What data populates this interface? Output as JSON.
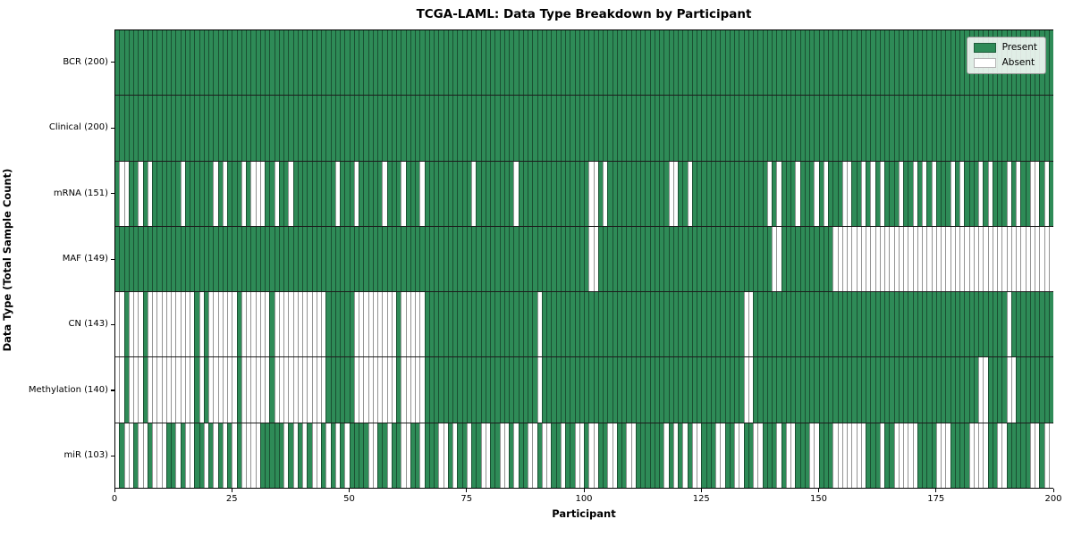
{
  "chart_data": {
    "type": "heatmap",
    "title": "TCGA-LAML: Data Type Breakdown by Participant",
    "xlabel": "Participant",
    "ylabel": "Data Type (Total Sample Count)",
    "x_ticks": [
      0,
      25,
      50,
      75,
      100,
      125,
      150,
      175,
      200
    ],
    "x_range": [
      0,
      200
    ],
    "n_participants": 200,
    "grid": false,
    "legend_position": "upper right",
    "colors": {
      "present": "#2e8b57",
      "absent": "#ffffff",
      "cell_edge": "rgba(0,0,0,0.42)",
      "frame": "#000000"
    },
    "legend": [
      {
        "label": "Present",
        "state": "present"
      },
      {
        "label": "Absent",
        "state": "absent"
      }
    ],
    "rows": [
      {
        "id": "bcr",
        "label": "BCR (200)",
        "present_count": 200,
        "absent": []
      },
      {
        "id": "clinical",
        "label": "Clinical (200)",
        "present_count": 200,
        "absent": []
      },
      {
        "id": "mrna",
        "label": "mRNA (151)",
        "present_count": 151,
        "absent": [
          1,
          2,
          5,
          7,
          14,
          21,
          23,
          27,
          29,
          30,
          31,
          34,
          37,
          47,
          51,
          57,
          61,
          65,
          76,
          85,
          101,
          102,
          104,
          118,
          119,
          122,
          139,
          141,
          145,
          149,
          151,
          155,
          156,
          159,
          161,
          163,
          167,
          170,
          172,
          174,
          178,
          180,
          184,
          186,
          190,
          192,
          195,
          196,
          198
        ]
      },
      {
        "id": "maf",
        "label": "MAF (149)",
        "present_count": 149,
        "absent": [
          101,
          102,
          140,
          141,
          153,
          154,
          155,
          156,
          157,
          158,
          159,
          160,
          161,
          162,
          163,
          164,
          165,
          166,
          167,
          168,
          169,
          170,
          171,
          172,
          173,
          174,
          175,
          176,
          177,
          178,
          179,
          180,
          181,
          182,
          183,
          184,
          185,
          186,
          187,
          188,
          189,
          190,
          191,
          192,
          193,
          194,
          195,
          196,
          197,
          198,
          199
        ]
      },
      {
        "id": "cn",
        "label": "CN (143)",
        "present_count": 143,
        "absent": [
          0,
          1,
          3,
          4,
          5,
          7,
          8,
          9,
          10,
          11,
          12,
          13,
          14,
          15,
          16,
          18,
          20,
          21,
          22,
          23,
          24,
          25,
          27,
          28,
          29,
          30,
          31,
          32,
          34,
          35,
          36,
          37,
          38,
          39,
          40,
          41,
          42,
          43,
          44,
          51,
          52,
          53,
          54,
          55,
          56,
          57,
          58,
          59,
          61,
          62,
          63,
          64,
          65,
          90,
          134,
          135,
          190
        ]
      },
      {
        "id": "methylation",
        "label": "Methylation (140)",
        "present_count": 140,
        "absent": [
          0,
          1,
          3,
          4,
          5,
          7,
          8,
          9,
          10,
          11,
          12,
          13,
          14,
          15,
          16,
          18,
          20,
          21,
          22,
          23,
          24,
          25,
          27,
          28,
          29,
          30,
          31,
          32,
          34,
          35,
          36,
          37,
          38,
          39,
          40,
          41,
          42,
          43,
          44,
          51,
          52,
          53,
          54,
          55,
          56,
          57,
          58,
          59,
          61,
          62,
          63,
          64,
          65,
          90,
          134,
          135,
          184,
          185,
          190,
          191
        ]
      },
      {
        "id": "mir",
        "label": "miR (103)",
        "present_count": 103,
        "absent": [
          0,
          2,
          3,
          5,
          6,
          8,
          9,
          10,
          13,
          15,
          16,
          19,
          21,
          23,
          25,
          27,
          28,
          29,
          30,
          36,
          38,
          40,
          42,
          43,
          45,
          47,
          49,
          54,
          55,
          58,
          61,
          62,
          65,
          69,
          70,
          72,
          75,
          78,
          79,
          82,
          83,
          85,
          88,
          89,
          91,
          92,
          95,
          98,
          99,
          101,
          102,
          105,
          106,
          109,
          110,
          117,
          119,
          121,
          123,
          124,
          128,
          129,
          132,
          133,
          136,
          137,
          141,
          143,
          144,
          148,
          149,
          153,
          154,
          155,
          156,
          157,
          158,
          159,
          163,
          166,
          167,
          168,
          169,
          170,
          175,
          176,
          177,
          182,
          183,
          184,
          185,
          188,
          189,
          195,
          196,
          198,
          199
        ]
      }
    ]
  }
}
